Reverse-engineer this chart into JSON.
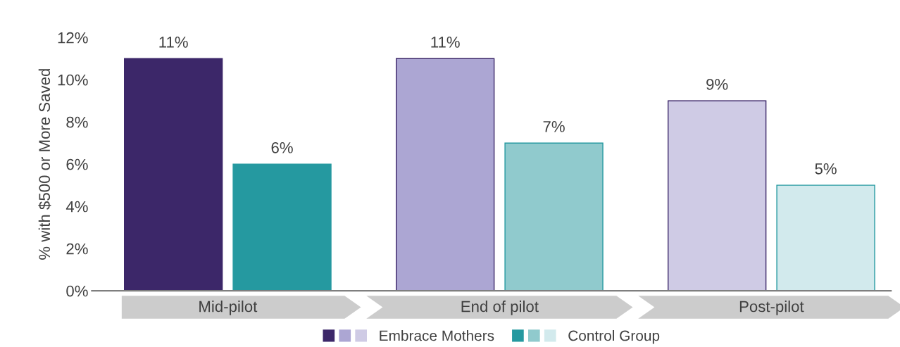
{
  "chart_data": {
    "type": "bar",
    "ylabel": "% with $500 or More Saved",
    "categories": [
      "Mid-pilot",
      "End of pilot",
      "Post-pilot"
    ],
    "series": [
      {
        "name": "Embrace Mothers",
        "colors": [
          "#3c2769",
          "#aca6d3",
          "#cfcbe5"
        ],
        "values": [
          11,
          11,
          9
        ],
        "value_labels": [
          "11%",
          "11%",
          "9%"
        ]
      },
      {
        "name": "Control Group",
        "colors": [
          "#2599a0",
          "#90cacd",
          "#d2eaed"
        ],
        "values": [
          6,
          7,
          5
        ],
        "value_labels": [
          "6%",
          "7%",
          "5%"
        ]
      }
    ],
    "ylim": [
      0,
      12
    ],
    "yticks": [
      {
        "value": 0,
        "label": "0%"
      },
      {
        "value": 2,
        "label": "2%"
      },
      {
        "value": 4,
        "label": "4%"
      },
      {
        "value": 6,
        "label": "6%"
      },
      {
        "value": 8,
        "label": "8%"
      },
      {
        "value": 10,
        "label": "10%"
      },
      {
        "value": 12,
        "label": "12%"
      }
    ],
    "grid": false,
    "legend": "bottom"
  }
}
